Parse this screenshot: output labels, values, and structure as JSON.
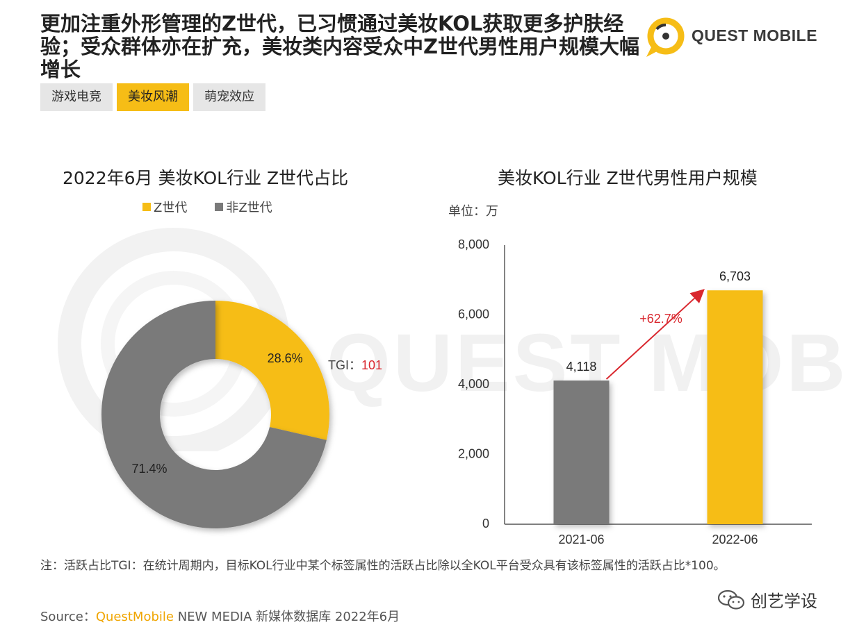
{
  "header": {
    "title": "更加注重外形管理的Z世代，已习惯通过美妆KOL获取更多护肤经验；受众群体亦在扩充，美妆类内容受众中Z世代男性用户规模大幅增长",
    "logo_text": "QUEST MOBILE"
  },
  "tabs": [
    {
      "label": "游戏电竞",
      "active": false
    },
    {
      "label": "美妆风潮",
      "active": true
    },
    {
      "label": "萌宠效应",
      "active": false
    }
  ],
  "watermark": {
    "text": "QUEST MOBILE"
  },
  "colors": {
    "accent": "#f6bd16",
    "gray": "#7a7a7a",
    "growth": "#d9272e"
  },
  "chart_data": [
    {
      "type": "pie",
      "title": "2022年6月 美妆KOL行业 Z世代占比",
      "legend": [
        "Z世代",
        "非Z世代"
      ],
      "slices": [
        {
          "name": "Z世代",
          "value": 28.6,
          "label": "28.6%",
          "color": "#f6bd16"
        },
        {
          "name": "非Z世代",
          "value": 71.4,
          "label": "71.4%",
          "color": "#7a7a7a"
        }
      ],
      "annotation": {
        "prefix": "TGI：",
        "value": "101"
      }
    },
    {
      "type": "bar",
      "title": "美妆KOL行业 Z世代男性用户规模",
      "unit": "单位：万",
      "categories": [
        "2021-06",
        "2022-06"
      ],
      "values": [
        4118,
        6703
      ],
      "value_labels": [
        "4,118",
        "6,703"
      ],
      "colors": [
        "#7a7a7a",
        "#f6bd16"
      ],
      "ylim": [
        0,
        8000
      ],
      "yticks": [
        0,
        2000,
        4000,
        6000,
        8000
      ],
      "ytick_labels": [
        "0",
        "2,000",
        "4,000",
        "6,000",
        "8,000"
      ],
      "growth_label": "+62.7%"
    }
  ],
  "footer": {
    "note": "注：活跃占比TGI：在统计周期内，目标KOL行业中某个标签属性的活跃占比除以全KOL平台受众具有该标签属性的活跃占比*100。",
    "source_prefix": "Source：",
    "source_brand": "QuestMobile",
    "source_rest": " NEW MEDIA 新媒体数据库 2022年6月",
    "wechat_label": "创艺学设"
  }
}
